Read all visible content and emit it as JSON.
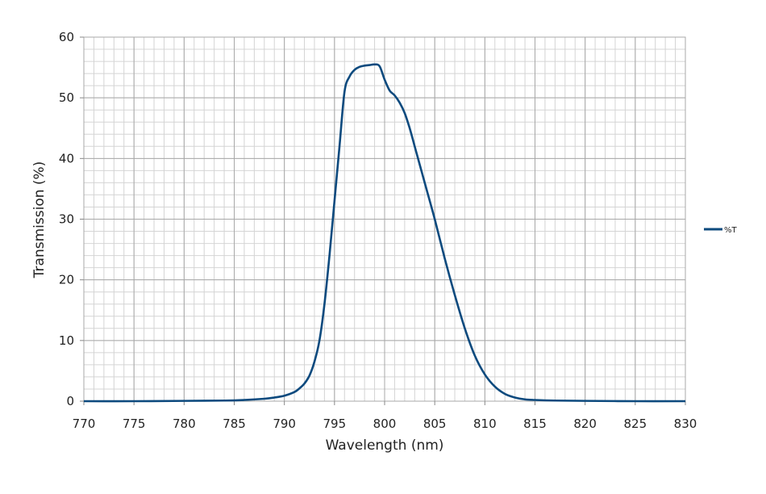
{
  "chart_data": {
    "type": "line",
    "title": "",
    "xlabel": "Wavelength (nm)",
    "ylabel": "Transmission (%)",
    "xlim": [
      770,
      830
    ],
    "ylim": [
      0,
      60
    ],
    "x_ticks": [
      "770",
      "775",
      "780",
      "785",
      "790",
      "795",
      "800",
      "805",
      "810",
      "815",
      "820",
      "825",
      "830"
    ],
    "y_ticks": [
      "0",
      "10",
      "20",
      "30",
      "40",
      "50",
      "60"
    ],
    "x_major_step": 5,
    "x_minor_step": 1,
    "y_major_step": 10,
    "y_minor_step": 2,
    "grid": true,
    "legend_position": "right",
    "series": [
      {
        "name": "%T",
        "color": "#0d4a7e",
        "x": [
          770,
          775,
          780,
          784,
          786,
          788,
          789,
          790,
          791,
          791.5,
          792,
          792.5,
          793,
          793.5,
          794,
          794.5,
          795,
          795.5,
          796,
          796.5,
          797,
          797.5,
          798,
          798.5,
          799,
          799.5,
          800,
          800.5,
          801,
          801.5,
          802,
          802.5,
          803,
          803.5,
          804,
          805,
          806,
          807,
          808,
          809,
          810,
          811,
          812,
          813,
          814,
          815,
          817,
          820,
          825,
          830
        ],
        "y": [
          0.0,
          0.0,
          0.05,
          0.1,
          0.2,
          0.4,
          0.6,
          0.9,
          1.5,
          2.1,
          2.9,
          4.2,
          6.5,
          10.0,
          16.0,
          24.0,
          33.0,
          42.0,
          51.0,
          53.5,
          54.6,
          55.1,
          55.3,
          55.4,
          55.5,
          55.2,
          53.0,
          51.2,
          50.4,
          49.2,
          47.5,
          45.0,
          42.0,
          39.0,
          36.0,
          30.0,
          23.5,
          17.5,
          12.0,
          7.5,
          4.4,
          2.4,
          1.2,
          0.6,
          0.3,
          0.2,
          0.1,
          0.05,
          0.0,
          0.0
        ]
      }
    ]
  }
}
